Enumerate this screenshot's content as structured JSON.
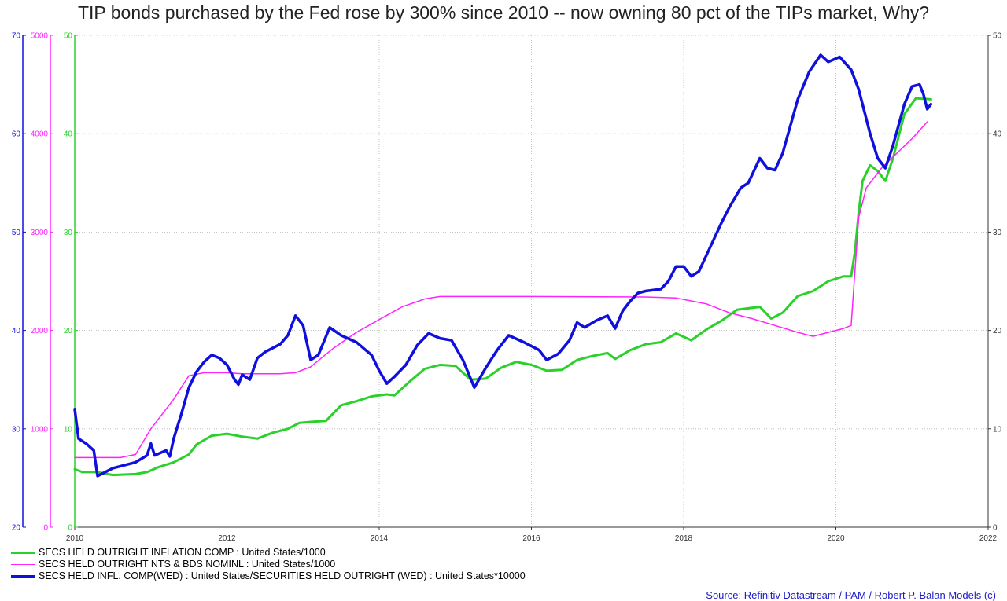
{
  "title": "TIP bonds purchased by the Fed rose by 300% since 2010 -- now owning 80 pct of the TIPs market, Why?",
  "source": "Source: Refinitiv Datastream / PAM / Robert P. Balan Models (c)",
  "colors": {
    "green": "#2bd12b",
    "magenta": "#ff22ff",
    "blue": "#1010dd",
    "grid": "#b4b4b4"
  },
  "chart_data": {
    "type": "line",
    "grid": true,
    "legend_position": "bottom-left",
    "x_range": [
      2010,
      2022
    ],
    "x_ticks": [
      "2010",
      "2012",
      "2014",
      "2016",
      "2018",
      "2020",
      "2022"
    ],
    "axes": {
      "blue_left": {
        "range": [
          20,
          70
        ],
        "ticks": [
          "20",
          "30",
          "40",
          "50",
          "60",
          "70"
        ]
      },
      "magenta_left": {
        "range": [
          0,
          5000
        ],
        "ticks": [
          "0",
          "1000",
          "2000",
          "3000",
          "4000",
          "5000"
        ]
      },
      "green_left": {
        "range": [
          0,
          50
        ],
        "ticks": [
          "0",
          "10",
          "20",
          "30",
          "40",
          "50"
        ]
      },
      "right": {
        "range": [
          0,
          50
        ],
        "ticks": [
          "0",
          "10",
          "20",
          "30",
          "40",
          "50"
        ]
      }
    },
    "series": [
      {
        "name": "SECS HELD OUTRIGHT INFLATION COMP : United States/1000",
        "color": "#2bd12b",
        "axis": "green_left",
        "width": 3,
        "points": [
          [
            2010.0,
            5.9
          ],
          [
            2010.1,
            5.6
          ],
          [
            2010.3,
            5.6
          ],
          [
            2010.5,
            5.3
          ],
          [
            2010.8,
            5.4
          ],
          [
            2010.95,
            5.6
          ],
          [
            2011.1,
            6.1
          ],
          [
            2011.3,
            6.6
          ],
          [
            2011.5,
            7.4
          ],
          [
            2011.6,
            8.4
          ],
          [
            2011.8,
            9.3
          ],
          [
            2012.0,
            9.5
          ],
          [
            2012.2,
            9.2
          ],
          [
            2012.4,
            9.0
          ],
          [
            2012.6,
            9.6
          ],
          [
            2012.8,
            10.0
          ],
          [
            2012.95,
            10.6
          ],
          [
            2013.1,
            10.7
          ],
          [
            2013.3,
            10.8
          ],
          [
            2013.5,
            12.4
          ],
          [
            2013.7,
            12.8
          ],
          [
            2013.9,
            13.3
          ],
          [
            2014.1,
            13.5
          ],
          [
            2014.2,
            13.4
          ],
          [
            2014.4,
            14.8
          ],
          [
            2014.6,
            16.1
          ],
          [
            2014.8,
            16.5
          ],
          [
            2015.0,
            16.4
          ],
          [
            2015.2,
            15.0
          ],
          [
            2015.4,
            15.1
          ],
          [
            2015.6,
            16.2
          ],
          [
            2015.8,
            16.8
          ],
          [
            2016.0,
            16.5
          ],
          [
            2016.2,
            15.9
          ],
          [
            2016.4,
            16.0
          ],
          [
            2016.6,
            17.0
          ],
          [
            2016.8,
            17.4
          ],
          [
            2017.0,
            17.7
          ],
          [
            2017.1,
            17.1
          ],
          [
            2017.3,
            18.0
          ],
          [
            2017.5,
            18.6
          ],
          [
            2017.7,
            18.8
          ],
          [
            2017.9,
            19.7
          ],
          [
            2018.1,
            19.0
          ],
          [
            2018.3,
            20.1
          ],
          [
            2018.5,
            21.0
          ],
          [
            2018.7,
            22.1
          ],
          [
            2018.9,
            22.3
          ],
          [
            2019.0,
            22.4
          ],
          [
            2019.15,
            21.2
          ],
          [
            2019.3,
            21.8
          ],
          [
            2019.5,
            23.5
          ],
          [
            2019.7,
            24.0
          ],
          [
            2019.9,
            25.0
          ],
          [
            2020.1,
            25.5
          ],
          [
            2020.2,
            25.5
          ],
          [
            2020.25,
            28.0
          ],
          [
            2020.3,
            32.0
          ],
          [
            2020.35,
            35.2
          ],
          [
            2020.45,
            36.8
          ],
          [
            2020.55,
            36.2
          ],
          [
            2020.65,
            35.2
          ],
          [
            2020.75,
            37.5
          ],
          [
            2020.9,
            42.0
          ],
          [
            2021.05,
            43.6
          ],
          [
            2021.25,
            43.5
          ]
        ]
      },
      {
        "name": "SECS HELD OUTRIGHT NTS & BDS NOMINL : United States/1000",
        "color": "#ff22ff",
        "axis": "magenta_left",
        "width": 1.5,
        "points": [
          [
            2010.0,
            708
          ],
          [
            2010.6,
            708
          ],
          [
            2010.8,
            740
          ],
          [
            2011.0,
            1000
          ],
          [
            2011.3,
            1300
          ],
          [
            2011.5,
            1540
          ],
          [
            2011.7,
            1570
          ],
          [
            2012.0,
            1570
          ],
          [
            2012.2,
            1560
          ],
          [
            2012.5,
            1560
          ],
          [
            2012.7,
            1560
          ],
          [
            2012.9,
            1570
          ],
          [
            2013.1,
            1630
          ],
          [
            2013.4,
            1820
          ],
          [
            2013.7,
            1980
          ],
          [
            2014.0,
            2110
          ],
          [
            2014.3,
            2240
          ],
          [
            2014.6,
            2320
          ],
          [
            2014.8,
            2345
          ],
          [
            2015.5,
            2345
          ],
          [
            2016.0,
            2345
          ],
          [
            2017.5,
            2340
          ],
          [
            2017.9,
            2330
          ],
          [
            2018.3,
            2270
          ],
          [
            2018.6,
            2180
          ],
          [
            2018.9,
            2120
          ],
          [
            2019.2,
            2050
          ],
          [
            2019.5,
            1980
          ],
          [
            2019.7,
            1940
          ],
          [
            2019.9,
            1980
          ],
          [
            2020.1,
            2020
          ],
          [
            2020.2,
            2050
          ],
          [
            2020.3,
            3150
          ],
          [
            2020.4,
            3450
          ],
          [
            2020.6,
            3650
          ],
          [
            2020.8,
            3800
          ],
          [
            2021.0,
            3950
          ],
          [
            2021.2,
            4120
          ]
        ]
      },
      {
        "name": "SECS HELD INFL. COMP(WED) : United States/SECURITIES HELD OUTRIGHT (WED) : United States*10000",
        "color": "#1010dd",
        "axis": "blue_left",
        "width": 3.5,
        "points": [
          [
            2010.0,
            32.0
          ],
          [
            2010.05,
            29.0
          ],
          [
            2010.15,
            28.5
          ],
          [
            2010.25,
            27.8
          ],
          [
            2010.3,
            25.2
          ],
          [
            2010.5,
            26.0
          ],
          [
            2010.8,
            26.6
          ],
          [
            2010.95,
            27.3
          ],
          [
            2011.0,
            28.5
          ],
          [
            2011.05,
            27.3
          ],
          [
            2011.2,
            27.8
          ],
          [
            2011.25,
            27.2
          ],
          [
            2011.3,
            29.0
          ],
          [
            2011.4,
            31.5
          ],
          [
            2011.5,
            34.2
          ],
          [
            2011.6,
            35.8
          ],
          [
            2011.7,
            36.8
          ],
          [
            2011.8,
            37.5
          ],
          [
            2011.9,
            37.2
          ],
          [
            2012.0,
            36.5
          ],
          [
            2012.1,
            35.0
          ],
          [
            2012.15,
            34.5
          ],
          [
            2012.2,
            35.5
          ],
          [
            2012.3,
            35.0
          ],
          [
            2012.4,
            37.2
          ],
          [
            2012.5,
            37.8
          ],
          [
            2012.7,
            38.6
          ],
          [
            2012.8,
            39.5
          ],
          [
            2012.9,
            41.5
          ],
          [
            2013.0,
            40.5
          ],
          [
            2013.1,
            37.0
          ],
          [
            2013.2,
            37.5
          ],
          [
            2013.35,
            40.3
          ],
          [
            2013.5,
            39.5
          ],
          [
            2013.7,
            38.8
          ],
          [
            2013.9,
            37.5
          ],
          [
            2014.0,
            35.9
          ],
          [
            2014.1,
            34.6
          ],
          [
            2014.2,
            35.3
          ],
          [
            2014.35,
            36.5
          ],
          [
            2014.5,
            38.5
          ],
          [
            2014.65,
            39.7
          ],
          [
            2014.8,
            39.2
          ],
          [
            2014.95,
            39.0
          ],
          [
            2015.1,
            37.0
          ],
          [
            2015.25,
            34.2
          ],
          [
            2015.4,
            36.2
          ],
          [
            2015.55,
            38.0
          ],
          [
            2015.7,
            39.5
          ],
          [
            2015.9,
            38.8
          ],
          [
            2016.1,
            38.0
          ],
          [
            2016.2,
            37.0
          ],
          [
            2016.35,
            37.6
          ],
          [
            2016.5,
            39.0
          ],
          [
            2016.6,
            40.8
          ],
          [
            2016.7,
            40.3
          ],
          [
            2016.85,
            41.0
          ],
          [
            2017.0,
            41.5
          ],
          [
            2017.1,
            40.2
          ],
          [
            2017.2,
            42.0
          ],
          [
            2017.3,
            43.0
          ],
          [
            2017.4,
            43.8
          ],
          [
            2017.5,
            44.0
          ],
          [
            2017.7,
            44.2
          ],
          [
            2017.8,
            45.0
          ],
          [
            2017.9,
            46.5
          ],
          [
            2018.0,
            46.5
          ],
          [
            2018.1,
            45.5
          ],
          [
            2018.2,
            46.0
          ],
          [
            2018.35,
            48.5
          ],
          [
            2018.5,
            51.0
          ],
          [
            2018.6,
            52.5
          ],
          [
            2018.75,
            54.5
          ],
          [
            2018.85,
            55.0
          ],
          [
            2019.0,
            57.5
          ],
          [
            2019.1,
            56.5
          ],
          [
            2019.2,
            56.3
          ],
          [
            2019.3,
            58.0
          ],
          [
            2019.5,
            63.5
          ],
          [
            2019.65,
            66.3
          ],
          [
            2019.8,
            68.0
          ],
          [
            2019.9,
            67.3
          ],
          [
            2020.05,
            67.8
          ],
          [
            2020.2,
            66.5
          ],
          [
            2020.3,
            64.5
          ],
          [
            2020.45,
            60.0
          ],
          [
            2020.55,
            57.5
          ],
          [
            2020.65,
            56.5
          ],
          [
            2020.75,
            58.8
          ],
          [
            2020.9,
            63.0
          ],
          [
            2021.0,
            64.8
          ],
          [
            2021.1,
            65.0
          ],
          [
            2021.15,
            64.0
          ],
          [
            2021.2,
            62.5
          ],
          [
            2021.25,
            63.0
          ]
        ]
      }
    ]
  },
  "legend": [
    {
      "label": "SECS HELD OUTRIGHT INFLATION COMP : United States/1000",
      "color": "#2bd12b",
      "thickness": 3
    },
    {
      "label": "SECS HELD OUTRIGHT NTS & BDS NOMINL : United States/1000",
      "color": "#ff22ff",
      "thickness": 1.5
    },
    {
      "label": "SECS HELD INFL. COMP(WED) : United States/SECURITIES HELD OUTRIGHT (WED) : United States*10000",
      "color": "#1010dd",
      "thickness": 4
    }
  ]
}
